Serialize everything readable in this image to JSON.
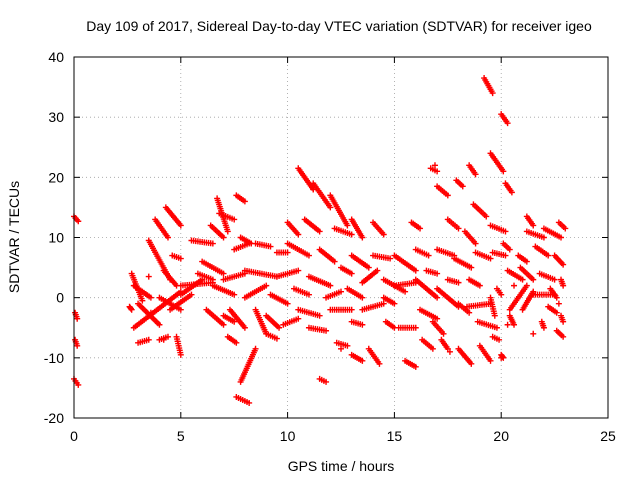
{
  "chart_data": {
    "type": "scatter",
    "title": "Day 109 of 2017, Sidereal Day-to-day VTEC variation (SDTVAR) for receiver igeo",
    "xlabel": "GPS time / hours",
    "ylabel": "SDTVAR / TECUs",
    "xlim": [
      0,
      25
    ],
    "ylim": [
      -20,
      40
    ],
    "xticks": [
      0,
      5,
      10,
      15,
      20,
      25
    ],
    "yticks": [
      -20,
      -10,
      0,
      10,
      20,
      30,
      40
    ],
    "grid": true,
    "marker": "+",
    "color": "#ff0000",
    "segments": [
      {
        "x0": 0.0,
        "y0": 13.5,
        "x1": 0.2,
        "y1": 12.7
      },
      {
        "x0": 0.05,
        "y0": -2.5,
        "x1": 0.15,
        "y1": -3.5
      },
      {
        "x0": 0.05,
        "y0": -7.0,
        "x1": 0.15,
        "y1": -8.0
      },
      {
        "x0": 0.0,
        "y0": -13.5,
        "x1": 0.2,
        "y1": -14.5
      },
      {
        "x0": 2.6,
        "y0": -1.5,
        "x1": 2.7,
        "y1": -2.0
      },
      {
        "x0": 2.7,
        "y0": 4.0,
        "x1": 3.2,
        "y1": -0.5
      },
      {
        "x0": 2.8,
        "y0": 2.0,
        "x1": 3.6,
        "y1": 0.0
      },
      {
        "x0": 2.8,
        "y0": -5.0,
        "x1": 5.0,
        "y1": 1.0
      },
      {
        "x0": 3.0,
        "y0": -1.0,
        "x1": 4.0,
        "y1": -4.5
      },
      {
        "x0": 3.0,
        "y0": -7.5,
        "x1": 3.5,
        "y1": -7.0
      },
      {
        "x0": 3.5,
        "y0": 9.5,
        "x1": 4.5,
        "y1": 3.0
      },
      {
        "x0": 3.8,
        "y0": 13.0,
        "x1": 4.4,
        "y1": 10.0
      },
      {
        "x0": 4.0,
        "y0": -7.0,
        "x1": 4.4,
        "y1": -6.5
      },
      {
        "x0": 4.0,
        "y0": 0.0,
        "x1": 5.0,
        "y1": -2.0
      },
      {
        "x0": 4.2,
        "y0": 4.5,
        "x1": 4.8,
        "y1": 2.0
      },
      {
        "x0": 4.3,
        "y0": 15.0,
        "x1": 5.0,
        "y1": 12.0
      },
      {
        "x0": 4.5,
        "y0": -2.0,
        "x1": 5.5,
        "y1": 0.5
      },
      {
        "x0": 4.6,
        "y0": 7.0,
        "x1": 5.0,
        "y1": 6.5
      },
      {
        "x0": 4.8,
        "y0": -6.5,
        "x1": 5.0,
        "y1": -9.5
      },
      {
        "x0": 5.0,
        "y0": 0.5,
        "x1": 6.0,
        "y1": 3.0
      },
      {
        "x0": 5.0,
        "y0": 2.0,
        "x1": 6.5,
        "y1": 2.5
      },
      {
        "x0": 5.5,
        "y0": 9.5,
        "x1": 6.5,
        "y1": 9.0
      },
      {
        "x0": 5.8,
        "y0": 4.0,
        "x1": 6.5,
        "y1": 3.0
      },
      {
        "x0": 6.0,
        "y0": 6.0,
        "x1": 7.0,
        "y1": 4.0
      },
      {
        "x0": 6.2,
        "y0": -2.0,
        "x1": 7.0,
        "y1": -4.5
      },
      {
        "x0": 6.4,
        "y0": 12.0,
        "x1": 7.0,
        "y1": 10.0
      },
      {
        "x0": 6.5,
        "y0": 2.0,
        "x1": 7.5,
        "y1": 0.5
      },
      {
        "x0": 6.7,
        "y0": 16.5,
        "x1": 7.2,
        "y1": 11.0
      },
      {
        "x0": 6.8,
        "y0": 14.0,
        "x1": 7.5,
        "y1": 13.0
      },
      {
        "x0": 7.0,
        "y0": -3.0,
        "x1": 7.5,
        "y1": -4.0
      },
      {
        "x0": 7.0,
        "y0": 3.0,
        "x1": 8.0,
        "y1": 4.0
      },
      {
        "x0": 7.2,
        "y0": -6.5,
        "x1": 7.6,
        "y1": -7.5
      },
      {
        "x0": 7.3,
        "y0": -2.0,
        "x1": 8.0,
        "y1": -5.0
      },
      {
        "x0": 7.5,
        "y0": 8.0,
        "x1": 8.2,
        "y1": 9.0
      },
      {
        "x0": 7.6,
        "y0": 17.0,
        "x1": 8.0,
        "y1": 16.0
      },
      {
        "x0": 7.6,
        "y0": -16.5,
        "x1": 8.2,
        "y1": -17.5
      },
      {
        "x0": 7.8,
        "y0": 10.0,
        "x1": 8.3,
        "y1": 9.0
      },
      {
        "x0": 7.8,
        "y0": -14.0,
        "x1": 8.5,
        "y1": -8.5
      },
      {
        "x0": 8.0,
        "y0": 0.0,
        "x1": 9.0,
        "y1": 2.0
      },
      {
        "x0": 8.0,
        "y0": 4.5,
        "x1": 9.5,
        "y1": 3.5
      },
      {
        "x0": 8.5,
        "y0": -2.0,
        "x1": 9.0,
        "y1": -6.0
      },
      {
        "x0": 8.5,
        "y0": 9.0,
        "x1": 9.2,
        "y1": 8.5
      },
      {
        "x0": 9.0,
        "y0": -3.0,
        "x1": 9.6,
        "y1": -5.0
      },
      {
        "x0": 9.0,
        "y0": -6.0,
        "x1": 9.5,
        "y1": -6.8
      },
      {
        "x0": 9.2,
        "y0": 0.5,
        "x1": 10.0,
        "y1": -1.0
      },
      {
        "x0": 9.5,
        "y0": 3.5,
        "x1": 10.5,
        "y1": 4.5
      },
      {
        "x0": 9.5,
        "y0": 7.5,
        "x1": 10.0,
        "y1": 7.5
      },
      {
        "x0": 9.8,
        "y0": -4.5,
        "x1": 10.5,
        "y1": -3.5
      },
      {
        "x0": 10.0,
        "y0": 12.5,
        "x1": 10.5,
        "y1": 10.5
      },
      {
        "x0": 10.0,
        "y0": 9.0,
        "x1": 11.0,
        "y1": 7.0
      },
      {
        "x0": 10.3,
        "y0": 1.5,
        "x1": 11.0,
        "y1": 0.5
      },
      {
        "x0": 10.5,
        "y0": 21.5,
        "x1": 11.2,
        "y1": 18.0
      },
      {
        "x0": 10.5,
        "y0": -2.0,
        "x1": 11.5,
        "y1": -3.0
      },
      {
        "x0": 10.8,
        "y0": 13.0,
        "x1": 11.5,
        "y1": 11.0
      },
      {
        "x0": 11.0,
        "y0": 3.5,
        "x1": 12.0,
        "y1": 2.0
      },
      {
        "x0": 11.0,
        "y0": -5.0,
        "x1": 11.8,
        "y1": -5.5
      },
      {
        "x0": 11.2,
        "y0": 19.0,
        "x1": 12.0,
        "y1": 15.0
      },
      {
        "x0": 11.5,
        "y0": 8.0,
        "x1": 12.2,
        "y1": 6.0
      },
      {
        "x0": 11.5,
        "y0": -13.5,
        "x1": 11.8,
        "y1": -14.0
      },
      {
        "x0": 11.8,
        "y0": 0.0,
        "x1": 12.5,
        "y1": 1.0
      },
      {
        "x0": 12.0,
        "y0": 17.0,
        "x1": 12.8,
        "y1": 12.0
      },
      {
        "x0": 12.0,
        "y0": -2.0,
        "x1": 13.0,
        "y1": -2.0
      },
      {
        "x0": 12.2,
        "y0": 11.5,
        "x1": 13.0,
        "y1": 10.5
      },
      {
        "x0": 12.3,
        "y0": -7.5,
        "x1": 12.8,
        "y1": -8.0
      },
      {
        "x0": 12.5,
        "y0": 5.0,
        "x1": 13.0,
        "y1": 4.0
      },
      {
        "x0": 12.8,
        "y0": 1.5,
        "x1": 13.5,
        "y1": 0.0
      },
      {
        "x0": 13.0,
        "y0": 13.0,
        "x1": 13.5,
        "y1": 10.0
      },
      {
        "x0": 13.0,
        "y0": 7.0,
        "x1": 13.8,
        "y1": 5.0
      },
      {
        "x0": 13.0,
        "y0": -4.0,
        "x1": 13.5,
        "y1": -4.5
      },
      {
        "x0": 13.0,
        "y0": -9.5,
        "x1": 13.5,
        "y1": -10.5
      },
      {
        "x0": 13.5,
        "y0": 2.5,
        "x1": 14.2,
        "y1": 4.5
      },
      {
        "x0": 13.5,
        "y0": -2.0,
        "x1": 14.5,
        "y1": -1.0
      },
      {
        "x0": 13.8,
        "y0": -8.5,
        "x1": 14.3,
        "y1": -11.0
      },
      {
        "x0": 14.0,
        "y0": 12.5,
        "x1": 14.5,
        "y1": 10.5
      },
      {
        "x0": 14.0,
        "y0": 7.0,
        "x1": 14.8,
        "y1": 6.5
      },
      {
        "x0": 14.5,
        "y0": 3.0,
        "x1": 15.5,
        "y1": 1.0
      },
      {
        "x0": 14.5,
        "y0": 0.0,
        "x1": 15.0,
        "y1": -1.0
      },
      {
        "x0": 14.6,
        "y0": -4.0,
        "x1": 15.0,
        "y1": -5.0
      },
      {
        "x0": 15.0,
        "y0": 7.0,
        "x1": 16.0,
        "y1": 4.5
      },
      {
        "x0": 15.0,
        "y0": 2.0,
        "x1": 16.0,
        "y1": 2.5
      },
      {
        "x0": 15.2,
        "y0": -5.0,
        "x1": 16.0,
        "y1": -5.0
      },
      {
        "x0": 15.5,
        "y0": -10.5,
        "x1": 16.0,
        "y1": -11.5
      },
      {
        "x0": 15.8,
        "y0": 12.5,
        "x1": 16.2,
        "y1": 11.5
      },
      {
        "x0": 16.0,
        "y0": 3.0,
        "x1": 17.0,
        "y1": 0.0
      },
      {
        "x0": 16.0,
        "y0": 8.0,
        "x1": 16.6,
        "y1": 7.0
      },
      {
        "x0": 16.2,
        "y0": -2.0,
        "x1": 17.0,
        "y1": -3.5
      },
      {
        "x0": 16.3,
        "y0": -7.0,
        "x1": 16.8,
        "y1": -8.5
      },
      {
        "x0": 16.5,
        "y0": 4.5,
        "x1": 17.0,
        "y1": 4.0
      },
      {
        "x0": 16.7,
        "y0": 21.5,
        "x1": 17.0,
        "y1": 21.0
      },
      {
        "x0": 16.8,
        "y0": -4.0,
        "x1": 17.3,
        "y1": -6.0
      },
      {
        "x0": 17.0,
        "y0": 18.5,
        "x1": 17.5,
        "y1": 17.0
      },
      {
        "x0": 17.0,
        "y0": 8.0,
        "x1": 17.8,
        "y1": 7.0
      },
      {
        "x0": 17.0,
        "y0": 1.5,
        "x1": 18.0,
        "y1": -1.5
      },
      {
        "x0": 17.2,
        "y0": -7.0,
        "x1": 17.5,
        "y1": -8.5
      },
      {
        "x0": 17.5,
        "y0": 3.0,
        "x1": 18.0,
        "y1": 2.5
      },
      {
        "x0": 17.5,
        "y0": 13.0,
        "x1": 18.0,
        "y1": 11.5
      },
      {
        "x0": 17.8,
        "y0": 6.5,
        "x1": 18.6,
        "y1": 5.0
      },
      {
        "x0": 17.9,
        "y0": 19.5,
        "x1": 18.2,
        "y1": 18.5
      },
      {
        "x0": 18.0,
        "y0": -1.0,
        "x1": 18.5,
        "y1": -2.5
      },
      {
        "x0": 18.0,
        "y0": -8.5,
        "x1": 18.6,
        "y1": -11.0
      },
      {
        "x0": 18.3,
        "y0": 11.0,
        "x1": 18.8,
        "y1": 9.0
      },
      {
        "x0": 18.4,
        "y0": -1.5,
        "x1": 19.5,
        "y1": -1.0
      },
      {
        "x0": 18.5,
        "y0": 22.0,
        "x1": 18.8,
        "y1": 20.5
      },
      {
        "x0": 18.5,
        "y0": 3.0,
        "x1": 19.0,
        "y1": 2.0
      },
      {
        "x0": 18.7,
        "y0": 15.5,
        "x1": 19.3,
        "y1": 13.5
      },
      {
        "x0": 18.8,
        "y0": 7.5,
        "x1": 19.5,
        "y1": 6.5
      },
      {
        "x0": 18.9,
        "y0": -4.0,
        "x1": 19.8,
        "y1": -5.0
      },
      {
        "x0": 19.0,
        "y0": -8.0,
        "x1": 19.5,
        "y1": -10.5
      },
      {
        "x0": 19.2,
        "y0": 36.5,
        "x1": 19.6,
        "y1": 34.0
      },
      {
        "x0": 19.5,
        "y0": 0.0,
        "x1": 19.7,
        "y1": -3.0
      },
      {
        "x0": 19.5,
        "y0": 24.0,
        "x1": 20.1,
        "y1": 21.0
      },
      {
        "x0": 19.5,
        "y0": 12.0,
        "x1": 20.2,
        "y1": 11.0
      },
      {
        "x0": 19.6,
        "y0": -6.5,
        "x1": 19.9,
        "y1": -7.0
      },
      {
        "x0": 19.6,
        "y0": 7.5,
        "x1": 20.2,
        "y1": 7.0
      },
      {
        "x0": 19.8,
        "y0": 1.5,
        "x1": 20.0,
        "y1": 0.5
      },
      {
        "x0": 20.0,
        "y0": 30.5,
        "x1": 20.3,
        "y1": 29.0
      },
      {
        "x0": 20.0,
        "y0": -9.5,
        "x1": 20.1,
        "y1": -10.0
      },
      {
        "x0": 20.1,
        "y0": 9.0,
        "x1": 20.4,
        "y1": 8.0
      },
      {
        "x0": 20.2,
        "y0": 19.0,
        "x1": 20.5,
        "y1": 17.5
      },
      {
        "x0": 20.3,
        "y0": 4.5,
        "x1": 21.0,
        "y1": 3.0
      },
      {
        "x0": 20.4,
        "y0": -2.0,
        "x1": 21.2,
        "y1": 2.0
      },
      {
        "x0": 20.4,
        "y0": -3.0,
        "x1": 20.6,
        "y1": -4.5
      },
      {
        "x0": 20.8,
        "y0": 7.0,
        "x1": 21.2,
        "y1": 6.0
      },
      {
        "x0": 20.9,
        "y0": 5.0,
        "x1": 21.5,
        "y1": 3.0
      },
      {
        "x0": 21.0,
        "y0": -2.0,
        "x1": 21.5,
        "y1": 1.0
      },
      {
        "x0": 21.2,
        "y0": 13.5,
        "x1": 21.5,
        "y1": 12.0
      },
      {
        "x0": 21.2,
        "y0": 11.0,
        "x1": 22.0,
        "y1": 10.0
      },
      {
        "x0": 21.5,
        "y0": 0.5,
        "x1": 22.5,
        "y1": 0.5
      },
      {
        "x0": 21.6,
        "y0": 8.5,
        "x1": 22.2,
        "y1": 7.0
      },
      {
        "x0": 21.8,
        "y0": 4.0,
        "x1": 22.5,
        "y1": 3.0
      },
      {
        "x0": 21.9,
        "y0": -4.0,
        "x1": 22.0,
        "y1": -5.0
      },
      {
        "x0": 22.0,
        "y0": 11.5,
        "x1": 22.8,
        "y1": 10.0
      },
      {
        "x0": 22.2,
        "y0": -1.5,
        "x1": 22.6,
        "y1": -2.5
      },
      {
        "x0": 22.3,
        "y0": 1.5,
        "x1": 22.6,
        "y1": 0.0
      },
      {
        "x0": 22.5,
        "y0": 7.0,
        "x1": 22.9,
        "y1": 5.5
      },
      {
        "x0": 22.6,
        "y0": -5.5,
        "x1": 22.9,
        "y1": -6.5
      },
      {
        "x0": 22.7,
        "y0": 12.5,
        "x1": 23.0,
        "y1": 11.5
      },
      {
        "x0": 22.8,
        "y0": 3.0,
        "x1": 22.9,
        "y1": 2.0
      },
      {
        "x0": 22.8,
        "y0": -3.0,
        "x1": 22.9,
        "y1": -4.0
      }
    ],
    "scattered_points": [
      {
        "x": 3.5,
        "y": 3.5
      },
      {
        "x": 4.2,
        "y": -7.0
      },
      {
        "x": 11.2,
        "y": 18.0
      },
      {
        "x": 12.5,
        "y": -8.5
      },
      {
        "x": 17.6,
        "y": -9.0
      },
      {
        "x": 20.0,
        "y": -10.0
      },
      {
        "x": 20.3,
        "y": -4.5
      },
      {
        "x": 20.6,
        "y": 2.0
      },
      {
        "x": 21.5,
        "y": -6.0
      },
      {
        "x": 22.7,
        "y": -1.0
      },
      {
        "x": 16.9,
        "y": 22.0
      },
      {
        "x": 3.6,
        "y": -2.5
      }
    ]
  }
}
